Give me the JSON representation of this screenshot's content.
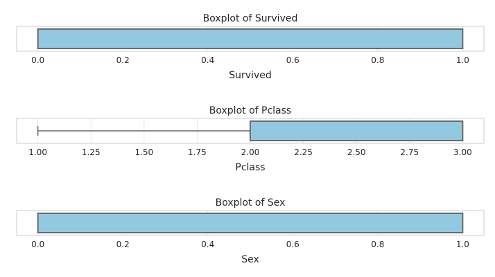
{
  "chart_data": [
    {
      "type": "boxplot",
      "title": "Boxplot of Survived",
      "xlabel": "Survived",
      "xlim": [
        -0.05,
        1.05
      ],
      "ticks": [
        0.0,
        0.2,
        0.4,
        0.6,
        0.8,
        1.0
      ],
      "tick_labels": [
        "0.0",
        "0.2",
        "0.4",
        "0.6",
        "0.8",
        "1.0"
      ],
      "box": {
        "min": 0.0,
        "q1": 0.0,
        "median": 0.0,
        "q3": 1.0,
        "max": 1.0
      },
      "grid": true
    },
    {
      "type": "boxplot",
      "title": "Boxplot of Pclass",
      "xlabel": "Pclass",
      "xlim": [
        0.9,
        3.1
      ],
      "ticks": [
        1.0,
        1.25,
        1.5,
        1.75,
        2.0,
        2.25,
        2.5,
        2.75,
        3.0
      ],
      "tick_labels": [
        "1.00",
        "1.25",
        "1.50",
        "1.75",
        "2.00",
        "2.25",
        "2.50",
        "2.75",
        "3.00"
      ],
      "box": {
        "min": 1.0,
        "q1": 2.0,
        "median": 3.0,
        "q3": 3.0,
        "max": 3.0
      },
      "grid": true
    },
    {
      "type": "boxplot",
      "title": "Boxplot of Sex",
      "xlabel": "Sex",
      "xlim": [
        -0.05,
        1.05
      ],
      "ticks": [
        0.0,
        0.2,
        0.4,
        0.6,
        0.8,
        1.0
      ],
      "tick_labels": [
        "0.0",
        "0.2",
        "0.4",
        "0.6",
        "0.8",
        "1.0"
      ],
      "box": {
        "min": 0.0,
        "q1": 0.0,
        "median": 1.0,
        "q3": 1.0,
        "max": 1.0
      },
      "grid": true
    }
  ],
  "colors": {
    "box_fill": "#92c9e0",
    "box_edge": "#6a6a6a",
    "grid": "#e6e6e6",
    "frame": "#cccccc",
    "text": "#262626"
  }
}
